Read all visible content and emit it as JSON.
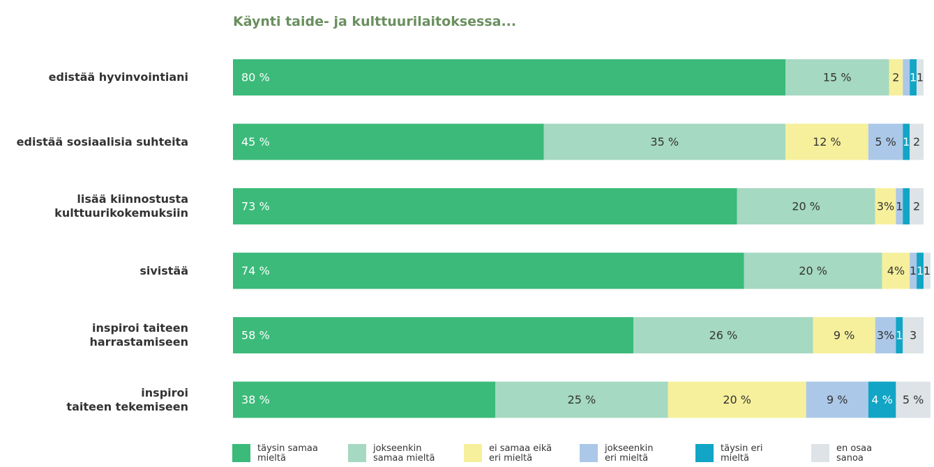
{
  "chart_data": {
    "type": "stacked_barh",
    "title": "Käynti taide- ja kulttuurilaitoksessa...",
    "categories": [
      "edistää hyvinvointiani",
      "edistää sosiaalisia suhteita",
      "lisää kiinnostusta\nkulttuurikokemuksiin",
      "sivistää",
      "inspiroi taiteen\nharrastamiseen",
      "inspiroi\ntaiteen tekemiseen"
    ],
    "xlim": [
      0,
      100
    ],
    "series": [
      {
        "name": "täysin samaa\nmieltä",
        "color": "#3bba7a",
        "values": [
          80,
          45,
          73,
          74,
          58,
          38
        ],
        "value_labels": [
          "80 %",
          "45 %",
          "73 %",
          "74 %",
          "58 %",
          "38 %"
        ]
      },
      {
        "name": "jokseenkin\nsamaa mieltä",
        "color": "#a5d9c1",
        "values": [
          15,
          35,
          20,
          20,
          26,
          25
        ],
        "value_labels": [
          "15 %",
          "35 %",
          "20 %",
          "20 %",
          "26 %",
          "25 %"
        ]
      },
      {
        "name": "ei samaa eikä\neri mieltä",
        "color": "#f6f09c",
        "values": [
          2,
          12,
          3,
          4,
          9,
          20
        ],
        "value_labels": [
          "2",
          "12 %",
          "3%",
          "4%",
          "9 %",
          "20 %"
        ]
      },
      {
        "name": "jokseenkin\neri mieltä",
        "color": "#abc8e8",
        "values": [
          1,
          5,
          1,
          1,
          3,
          9
        ],
        "value_labels": [
          null,
          "5 %",
          "1",
          "1",
          "3%",
          "9 %"
        ]
      },
      {
        "name": "täysin eri\nmieltä",
        "color": "#12a5c5",
        "values": [
          1,
          1,
          1,
          1,
          1,
          4
        ],
        "value_labels": [
          "1",
          "1",
          null,
          "1",
          "1",
          "4 %"
        ]
      },
      {
        "name": "en osaa\nsanoa",
        "color": "#dde3e6",
        "values": [
          1,
          2,
          2,
          1,
          3,
          5
        ],
        "value_labels": [
          "1",
          "2",
          "2",
          "1",
          "3",
          "5 %"
        ]
      }
    ]
  }
}
